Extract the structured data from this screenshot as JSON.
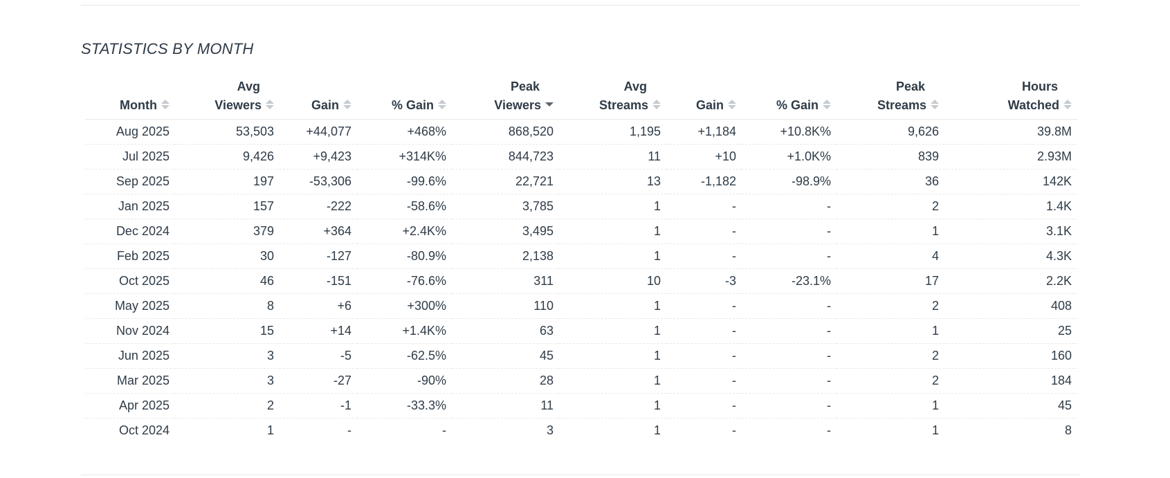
{
  "section_title": "STATISTICS BY MONTH",
  "colors": {
    "positive": "#1e7d1e",
    "negative": "#d0201f",
    "text": "#2f3b47"
  },
  "table": {
    "sorted_by": "peak_viewers",
    "sort_direction": "desc",
    "columns": [
      {
        "key": "month",
        "line1": "",
        "line2": "Month"
      },
      {
        "key": "avg_viewers",
        "line1": "Avg",
        "line2": "Viewers"
      },
      {
        "key": "viewers_gain",
        "line1": "",
        "line2": "Gain"
      },
      {
        "key": "viewers_pct_gain",
        "line1": "",
        "line2": "% Gain"
      },
      {
        "key": "peak_viewers",
        "line1": "Peak",
        "line2": "Viewers"
      },
      {
        "key": "avg_streams",
        "line1": "Avg",
        "line2": "Streams"
      },
      {
        "key": "streams_gain",
        "line1": "",
        "line2": "Gain"
      },
      {
        "key": "streams_pct_gain",
        "line1": "",
        "line2": "% Gain"
      },
      {
        "key": "peak_streams",
        "line1": "Peak",
        "line2": "Streams"
      },
      {
        "key": "hours_watched",
        "line1": "Hours",
        "line2": "Watched"
      }
    ],
    "rows": [
      [
        "Aug 2025",
        "53,503",
        "+44,077",
        "+468%",
        "868,520",
        "1,195",
        "+1,184",
        "+10.8K%",
        "9,626",
        "39.8M"
      ],
      [
        "Jul 2025",
        "9,426",
        "+9,423",
        "+314K%",
        "844,723",
        "11",
        "+10",
        "+1.0K%",
        "839",
        "2.93M"
      ],
      [
        "Sep 2025",
        "197",
        "-53,306",
        "-99.6%",
        "22,721",
        "13",
        "-1,182",
        "-98.9%",
        "36",
        "142K"
      ],
      [
        "Jan 2025",
        "157",
        "-222",
        "-58.6%",
        "3,785",
        "1",
        "-",
        "-",
        "2",
        "1.4K"
      ],
      [
        "Dec 2024",
        "379",
        "+364",
        "+2.4K%",
        "3,495",
        "1",
        "-",
        "-",
        "1",
        "3.1K"
      ],
      [
        "Feb 2025",
        "30",
        "-127",
        "-80.9%",
        "2,138",
        "1",
        "-",
        "-",
        "4",
        "4.3K"
      ],
      [
        "Oct 2025",
        "46",
        "-151",
        "-76.6%",
        "311",
        "10",
        "-3",
        "-23.1%",
        "17",
        "2.2K"
      ],
      [
        "May 2025",
        "8",
        "+6",
        "+300%",
        "110",
        "1",
        "-",
        "-",
        "2",
        "408"
      ],
      [
        "Nov 2024",
        "15",
        "+14",
        "+1.4K%",
        "63",
        "1",
        "-",
        "-",
        "1",
        "25"
      ],
      [
        "Jun 2025",
        "3",
        "-5",
        "-62.5%",
        "45",
        "1",
        "-",
        "-",
        "2",
        "160"
      ],
      [
        "Mar 2025",
        "3",
        "-27",
        "-90%",
        "28",
        "1",
        "-",
        "-",
        "2",
        "184"
      ],
      [
        "Apr 2025",
        "2",
        "-1",
        "-33.3%",
        "11",
        "1",
        "-",
        "-",
        "1",
        "45"
      ],
      [
        "Oct 2024",
        "1",
        "-",
        "-",
        "3",
        "1",
        "-",
        "-",
        "1",
        "8"
      ]
    ]
  }
}
